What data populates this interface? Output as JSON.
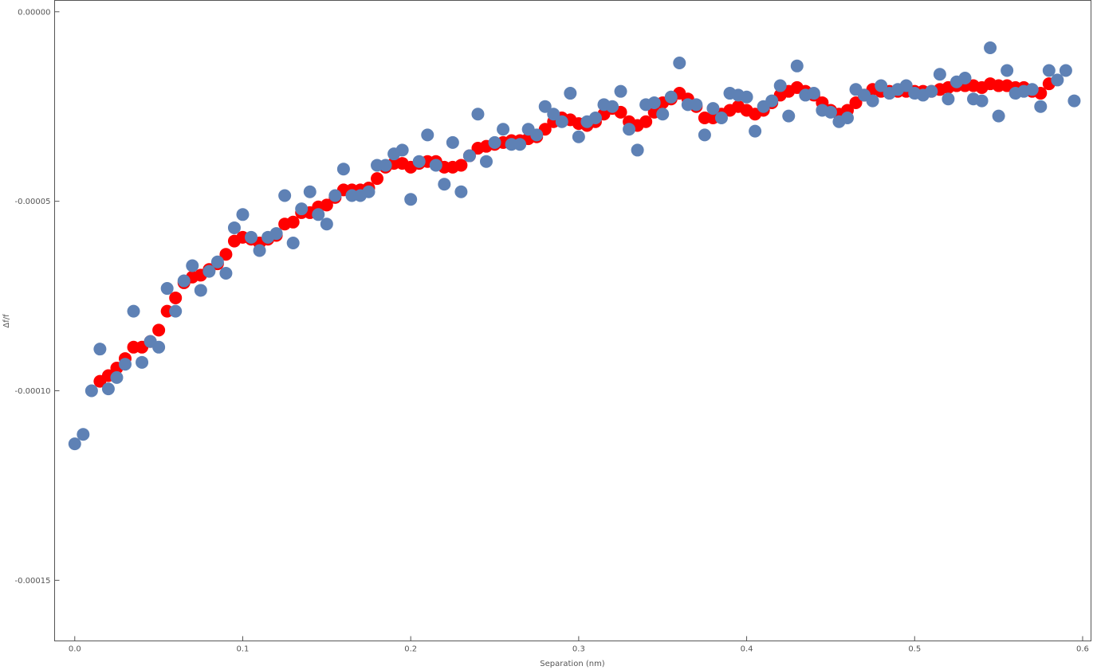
{
  "chart_data": {
    "type": "scatter",
    "xlabel": "Separation (nm)",
    "ylabel": "Δf/f",
    "xlim": [
      -0.012,
      0.605
    ],
    "ylim": [
      -0.000166,
      3e-06
    ],
    "grid": false,
    "frame": true,
    "x_ticks": [
      {
        "value": 0.0,
        "label": "0.0"
      },
      {
        "value": 0.1,
        "label": "0.1"
      },
      {
        "value": 0.2,
        "label": "0.2"
      },
      {
        "value": 0.3,
        "label": "0.3"
      },
      {
        "value": 0.4,
        "label": "0.4"
      },
      {
        "value": 0.5,
        "label": "0.5"
      },
      {
        "value": 0.6,
        "label": "0.6"
      }
    ],
    "y_ticks": [
      {
        "value": 0.0,
        "label": "0.00000"
      },
      {
        "value": -5e-05,
        "label": "-0.00005"
      },
      {
        "value": -0.0001,
        "label": "-0.00010"
      },
      {
        "value": -0.00015,
        "label": "-0.00015"
      }
    ],
    "colors": {
      "series_red": "#ff0000",
      "series_blue": "#5e81b5",
      "frame": "#555555"
    },
    "series": [
      {
        "color": "#ff0000",
        "marker_radius": 8,
        "x": [
          0.015,
          0.02,
          0.025,
          0.03,
          0.035,
          0.04,
          0.045,
          0.05,
          0.055,
          0.06,
          0.065,
          0.07,
          0.075,
          0.08,
          0.085,
          0.09,
          0.095,
          0.1,
          0.105,
          0.11,
          0.115,
          0.12,
          0.125,
          0.13,
          0.135,
          0.14,
          0.145,
          0.15,
          0.155,
          0.16,
          0.165,
          0.17,
          0.175,
          0.18,
          0.185,
          0.19,
          0.195,
          0.2,
          0.205,
          0.21,
          0.215,
          0.22,
          0.225,
          0.23,
          0.235,
          0.24,
          0.245,
          0.25,
          0.255,
          0.26,
          0.265,
          0.27,
          0.275,
          0.28,
          0.285,
          0.29,
          0.295,
          0.3,
          0.305,
          0.31,
          0.315,
          0.32,
          0.325,
          0.33,
          0.335,
          0.34,
          0.345,
          0.35,
          0.355,
          0.36,
          0.365,
          0.37,
          0.375,
          0.38,
          0.385,
          0.39,
          0.395,
          0.4,
          0.405,
          0.41,
          0.415,
          0.42,
          0.425,
          0.43,
          0.435,
          0.44,
          0.445,
          0.45,
          0.455,
          0.46,
          0.465,
          0.47,
          0.475,
          0.48,
          0.485,
          0.49,
          0.495,
          0.5,
          0.505,
          0.51,
          0.515,
          0.52,
          0.525,
          0.53,
          0.535,
          0.54,
          0.545,
          0.55,
          0.555,
          0.56,
          0.565,
          0.57,
          0.575,
          0.58
        ],
        "y": [
          -9.75e-05,
          -9.6e-05,
          -9.4e-05,
          -9.15e-05,
          -8.85e-05,
          -8.85e-05,
          -8.7e-05,
          -8.4e-05,
          -7.9e-05,
          -7.55e-05,
          -7.15e-05,
          -7e-05,
          -6.95e-05,
          -6.8e-05,
          -6.65e-05,
          -6.4e-05,
          -6.05e-05,
          -5.95e-05,
          -6e-05,
          -6.1e-05,
          -6e-05,
          -5.9e-05,
          -5.6e-05,
          -5.55e-05,
          -5.3e-05,
          -5.3e-05,
          -5.15e-05,
          -5.1e-05,
          -4.9e-05,
          -4.7e-05,
          -4.7e-05,
          -4.7e-05,
          -4.65e-05,
          -4.4e-05,
          -4.1e-05,
          -4e-05,
          -4e-05,
          -4.1e-05,
          -4e-05,
          -3.95e-05,
          -3.95e-05,
          -4.1e-05,
          -4.1e-05,
          -4.05e-05,
          -3.8e-05,
          -3.6e-05,
          -3.55e-05,
          -3.5e-05,
          -3.45e-05,
          -3.4e-05,
          -3.4e-05,
          -3.35e-05,
          -3.3e-05,
          -3.1e-05,
          -2.9e-05,
          -2.8e-05,
          -2.85e-05,
          -2.95e-05,
          -3e-05,
          -2.9e-05,
          -2.7e-05,
          -2.55e-05,
          -2.65e-05,
          -2.9e-05,
          -3e-05,
          -2.9e-05,
          -2.65e-05,
          -2.4e-05,
          -2.3e-05,
          -2.15e-05,
          -2.3e-05,
          -2.5e-05,
          -2.8e-05,
          -2.8e-05,
          -2.7e-05,
          -2.6e-05,
          -2.5e-05,
          -2.6e-05,
          -2.7e-05,
          -2.6e-05,
          -2.4e-05,
          -2.2e-05,
          -2.1e-05,
          -2e-05,
          -2.1e-05,
          -2.2e-05,
          -2.4e-05,
          -2.6e-05,
          -2.7e-05,
          -2.6e-05,
          -2.4e-05,
          -2.2e-05,
          -2.05e-05,
          -2.1e-05,
          -2.1e-05,
          -2.1e-05,
          -2.1e-05,
          -2.1e-05,
          -2.1e-05,
          -2.1e-05,
          -2.05e-05,
          -2e-05,
          -1.95e-05,
          -1.95e-05,
          -1.95e-05,
          -2e-05,
          -1.9e-05,
          -1.95e-05,
          -1.95e-05,
          -2e-05,
          -2e-05,
          -2.1e-05,
          -2.15e-05,
          -1.9e-05
        ]
      },
      {
        "color": "#5e81b5",
        "marker_radius": 8,
        "x": [
          0.0,
          0.005,
          0.01,
          0.015,
          0.02,
          0.025,
          0.03,
          0.035,
          0.04,
          0.045,
          0.05,
          0.055,
          0.06,
          0.065,
          0.07,
          0.075,
          0.08,
          0.085,
          0.09,
          0.095,
          0.1,
          0.105,
          0.11,
          0.115,
          0.12,
          0.125,
          0.13,
          0.135,
          0.14,
          0.145,
          0.15,
          0.155,
          0.16,
          0.165,
          0.17,
          0.175,
          0.18,
          0.185,
          0.19,
          0.195,
          0.2,
          0.205,
          0.21,
          0.215,
          0.22,
          0.225,
          0.23,
          0.235,
          0.24,
          0.245,
          0.25,
          0.255,
          0.26,
          0.265,
          0.27,
          0.275,
          0.28,
          0.285,
          0.29,
          0.295,
          0.3,
          0.305,
          0.31,
          0.315,
          0.32,
          0.325,
          0.33,
          0.335,
          0.34,
          0.345,
          0.35,
          0.355,
          0.36,
          0.365,
          0.37,
          0.375,
          0.38,
          0.385,
          0.39,
          0.395,
          0.4,
          0.405,
          0.41,
          0.415,
          0.42,
          0.425,
          0.43,
          0.435,
          0.44,
          0.445,
          0.45,
          0.455,
          0.46,
          0.465,
          0.47,
          0.475,
          0.48,
          0.485,
          0.49,
          0.495,
          0.5,
          0.505,
          0.51,
          0.515,
          0.52,
          0.525,
          0.53,
          0.535,
          0.54,
          0.545,
          0.55,
          0.555,
          0.56,
          0.565,
          0.57,
          0.575,
          0.58,
          0.585,
          0.59,
          0.595
        ],
        "y": [
          -0.000114,
          -0.0001115,
          -0.0001,
          -8.9e-05,
          -9.95e-05,
          -9.65e-05,
          -9.3e-05,
          -7.9e-05,
          -9.25e-05,
          -8.7e-05,
          -8.85e-05,
          -7.3e-05,
          -7.9e-05,
          -7.1e-05,
          -6.7e-05,
          -7.35e-05,
          -6.85e-05,
          -6.6e-05,
          -6.9e-05,
          -5.7e-05,
          -5.35e-05,
          -5.95e-05,
          -6.3e-05,
          -5.95e-05,
          -5.85e-05,
          -4.85e-05,
          -6.1e-05,
          -5.2e-05,
          -4.75e-05,
          -5.35e-05,
          -5.6e-05,
          -4.85e-05,
          -4.15e-05,
          -4.85e-05,
          -4.85e-05,
          -4.75e-05,
          -4.05e-05,
          -4.05e-05,
          -3.75e-05,
          -3.65e-05,
          -4.95e-05,
          -3.95e-05,
          -3.25e-05,
          -4.05e-05,
          -4.55e-05,
          -3.45e-05,
          -4.75e-05,
          -3.8e-05,
          -2.7e-05,
          -3.95e-05,
          -3.45e-05,
          -3.1e-05,
          -3.5e-05,
          -3.5e-05,
          -3.1e-05,
          -3.25e-05,
          -2.5e-05,
          -2.7e-05,
          -2.9e-05,
          -2.15e-05,
          -3.3e-05,
          -2.9e-05,
          -2.8e-05,
          -2.45e-05,
          -2.5e-05,
          -2.1e-05,
          -3.1e-05,
          -3.65e-05,
          -2.45e-05,
          -2.4e-05,
          -2.7e-05,
          -2.25e-05,
          -1.35e-05,
          -2.45e-05,
          -2.45e-05,
          -3.25e-05,
          -2.55e-05,
          -2.8e-05,
          -2.15e-05,
          -2.2e-05,
          -2.25e-05,
          -3.15e-05,
          -2.5e-05,
          -2.35e-05,
          -1.95e-05,
          -2.75e-05,
          -1.43e-05,
          -2.2e-05,
          -2.15e-05,
          -2.6e-05,
          -2.65e-05,
          -2.9e-05,
          -2.8e-05,
          -2.05e-05,
          -2.2e-05,
          -2.35e-05,
          -1.95e-05,
          -2.15e-05,
          -2.05e-05,
          -1.95e-05,
          -2.15e-05,
          -2.2e-05,
          -2.1e-05,
          -1.65e-05,
          -2.3e-05,
          -1.85e-05,
          -1.75e-05,
          -2.3e-05,
          -2.35e-05,
          -9.5e-06,
          -2.75e-05,
          -1.55e-05,
          -2.15e-05,
          -2.1e-05,
          -2.05e-05,
          -2.5e-05,
          -1.55e-05,
          -1.8e-05,
          -1.55e-05,
          -2.35e-05
        ]
      }
    ]
  }
}
